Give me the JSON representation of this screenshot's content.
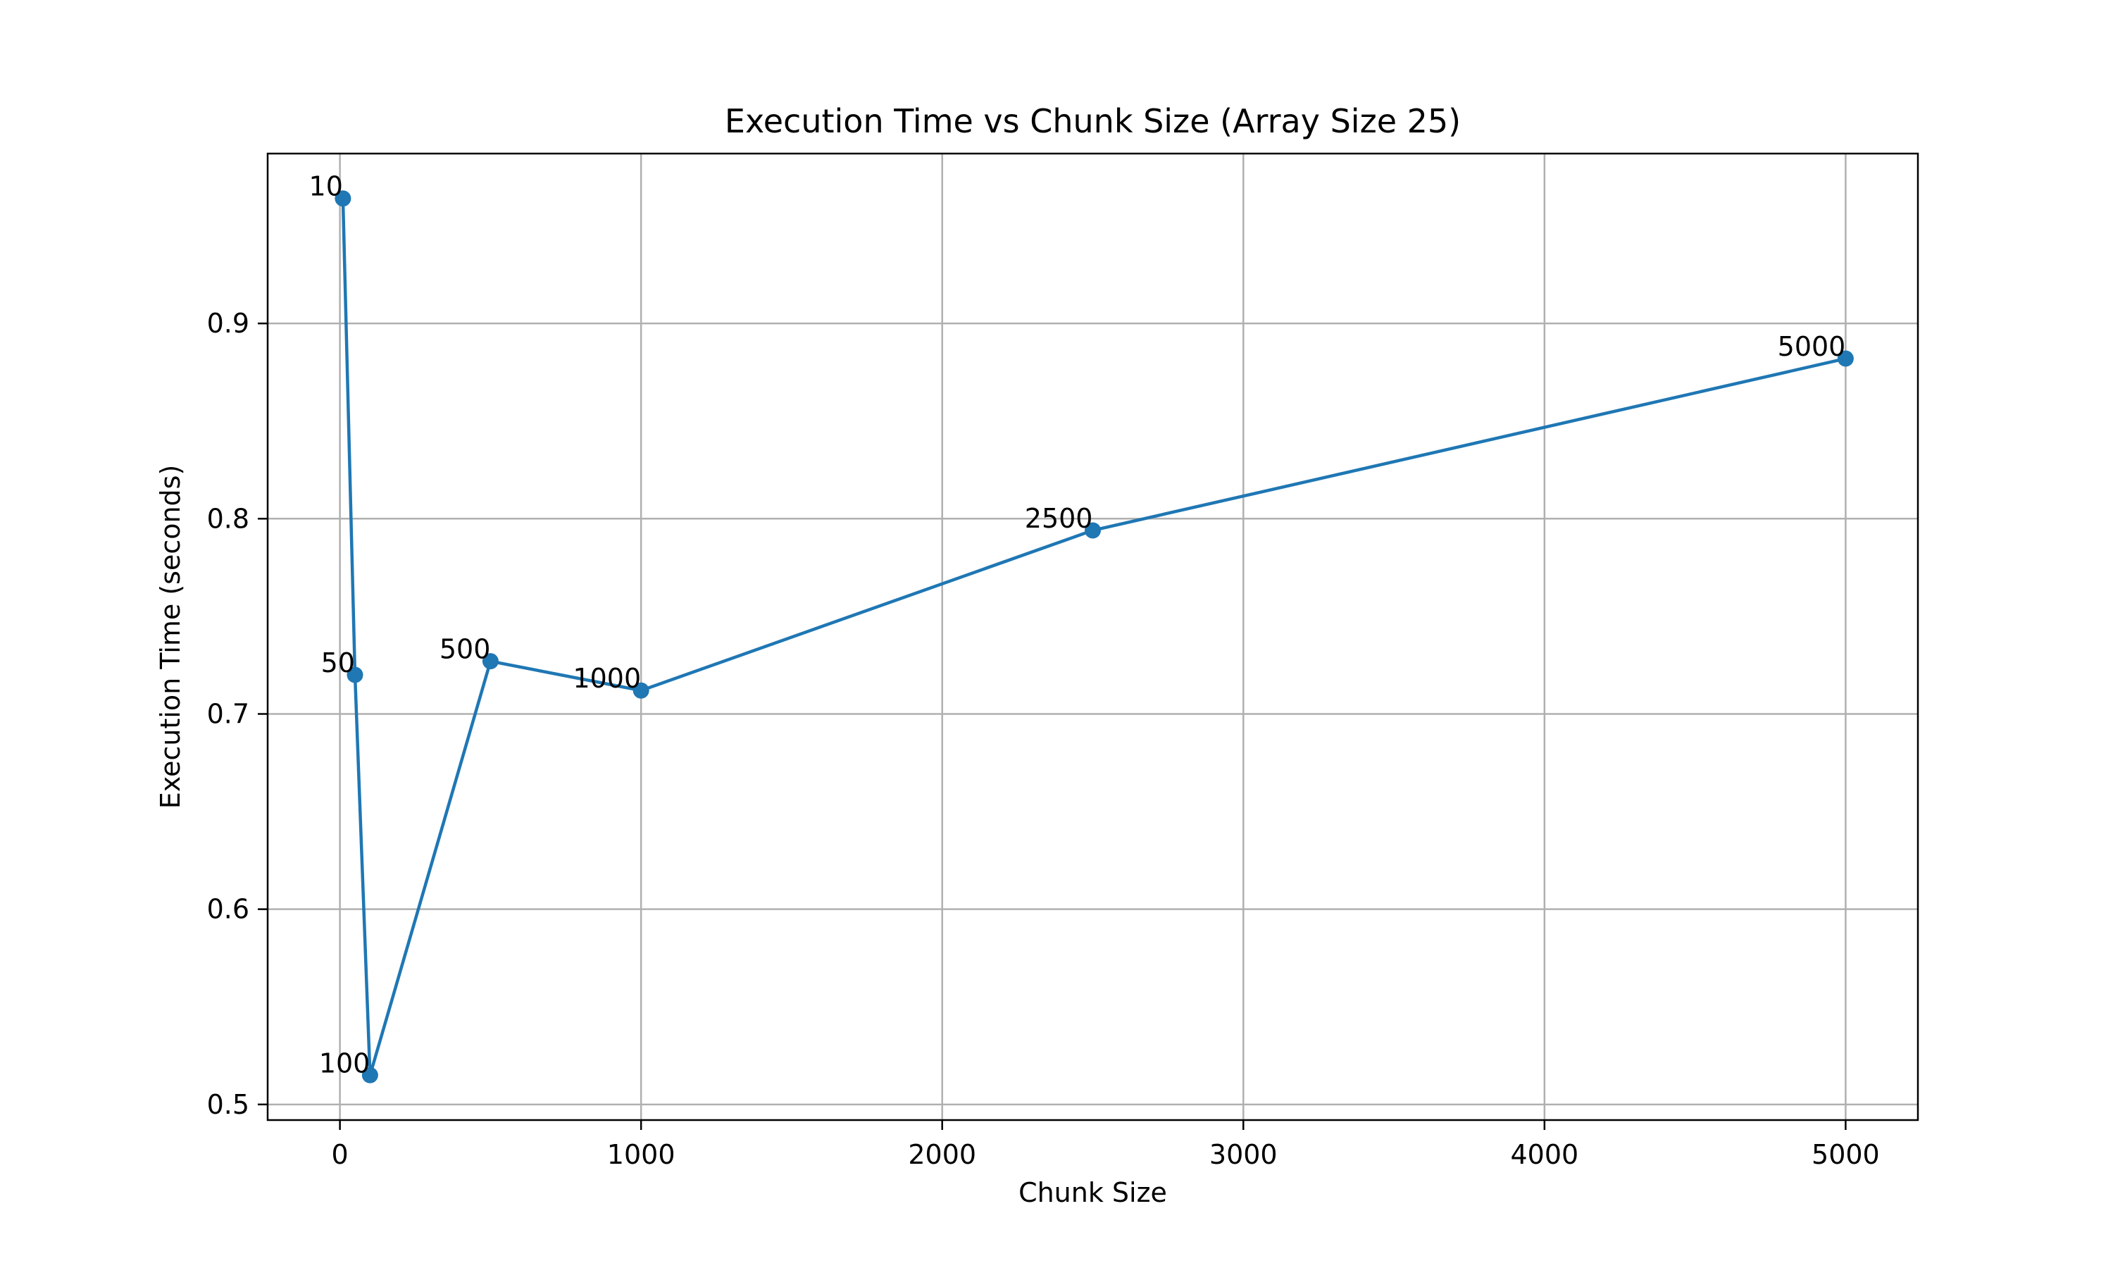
{
  "chart_data": {
    "type": "line",
    "title": "Execution Time vs Chunk Size (Array Size 25)",
    "xlabel": "Chunk Size",
    "ylabel": "Execution Time (seconds)",
    "xlim": [
      -240,
      5240
    ],
    "ylim": [
      0.492,
      0.987
    ],
    "x_ticks": [
      0,
      1000,
      2000,
      3000,
      4000,
      5000
    ],
    "x_tick_labels": [
      "0",
      "1000",
      "2000",
      "3000",
      "4000",
      "5000"
    ],
    "y_ticks": [
      0.5,
      0.6,
      0.7,
      0.8,
      0.9
    ],
    "y_tick_labels": [
      "0.5",
      "0.6",
      "0.7",
      "0.8",
      "0.9"
    ],
    "grid": true,
    "series": [
      {
        "color": "#1f77b4",
        "marker": "circle",
        "x": [
          10,
          50,
          100,
          500,
          1000,
          2500,
          5000
        ],
        "y": [
          0.964,
          0.72,
          0.515,
          0.727,
          0.712,
          0.794,
          0.882
        ],
        "point_labels": [
          "10",
          "50",
          "100",
          "500",
          "1000",
          "2500",
          "5000"
        ]
      }
    ]
  }
}
